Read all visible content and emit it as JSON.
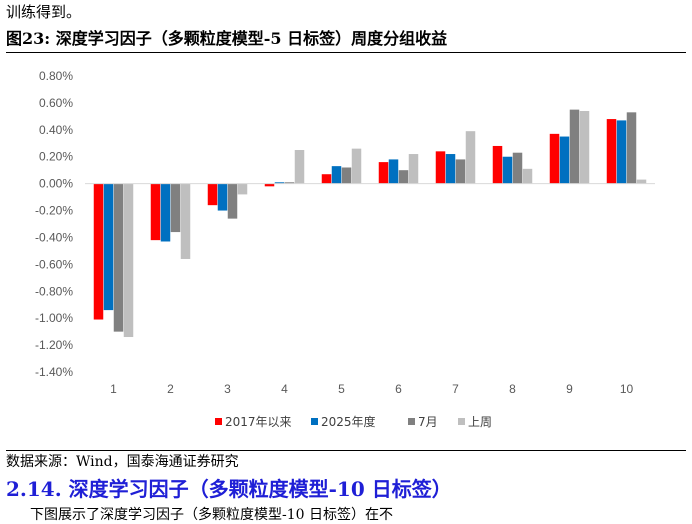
{
  "intro_line": "训练得到。",
  "figure": {
    "title": "图23:  深度学习因子（多颗粒度模型-5 日标签）周度分组收益"
  },
  "chart_data": {
    "type": "bar",
    "categories": [
      "1",
      "2",
      "3",
      "4",
      "5",
      "6",
      "7",
      "8",
      "9",
      "10"
    ],
    "series": [
      {
        "name": "2017年以来",
        "color": "#ff0000",
        "values": [
          -1.01,
          -0.42,
          -0.16,
          -0.02,
          0.07,
          0.16,
          0.24,
          0.28,
          0.37,
          0.48
        ]
      },
      {
        "name": "2025年度",
        "color": "#0070c0",
        "values": [
          -0.94,
          -0.43,
          -0.2,
          0.01,
          0.13,
          0.18,
          0.22,
          0.2,
          0.35,
          0.47
        ]
      },
      {
        "name": "7月",
        "color": "#808080",
        "values": [
          -1.1,
          -0.36,
          -0.26,
          0.01,
          0.12,
          0.1,
          0.18,
          0.23,
          0.55,
          0.53
        ]
      },
      {
        "name": "上周",
        "color": "#bfbfbf",
        "values": [
          -1.14,
          -0.56,
          -0.08,
          0.25,
          0.26,
          0.22,
          0.39,
          0.11,
          0.54,
          0.03
        ]
      }
    ],
    "ylim": [
      -1.4,
      0.8
    ],
    "yticks": [
      "0.80%",
      "0.60%",
      "0.40%",
      "0.20%",
      "0.00%",
      "-0.20%",
      "-0.40%",
      "-0.60%",
      "-0.80%",
      "-1.00%",
      "-1.20%",
      "-1.40%"
    ],
    "ytick_values": [
      0.8,
      0.6,
      0.4,
      0.2,
      0.0,
      -0.2,
      -0.4,
      -0.6,
      -0.8,
      -1.0,
      -1.2,
      -1.4
    ],
    "grid": false,
    "legend_position": "bottom"
  },
  "source_text": "数据来源：Wind，国泰海通证券研究",
  "section_heading": "2.14.  深度学习因子（多颗粒度模型-10 日标签）",
  "next_line": "下图展示了深度学习因子（多颗粒度模型-10 日标签）在不"
}
